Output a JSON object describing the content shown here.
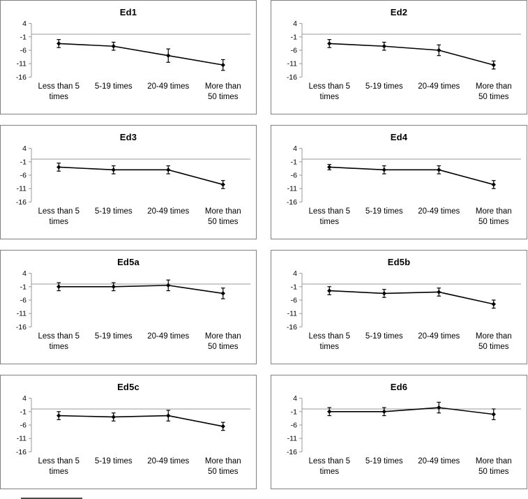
{
  "y_axis": {
    "ticks": [
      4,
      -1,
      -6,
      -11,
      -16
    ],
    "max": 4,
    "min": -16
  },
  "shared_categories": [
    "Less than 5 times",
    "5-19 times",
    "20-49 times",
    "More than 50 times"
  ],
  "chart_data": [
    {
      "type": "line",
      "title": "Ed1",
      "categories": [
        "Less than 5 times",
        "5-19 times",
        "20-49 times",
        "More than 50 times"
      ],
      "values": [
        -3.5,
        -4.5,
        -8,
        -11.5
      ],
      "errors": [
        1.5,
        1.5,
        2.5,
        2
      ],
      "ylim": [
        -16,
        4
      ],
      "yticks": [
        4,
        -1,
        -6,
        -11,
        -16
      ]
    },
    {
      "type": "line",
      "title": "Ed2",
      "categories": [
        "Less than 5 times",
        "5-19 times",
        "20-49 times",
        "More than 50 times"
      ],
      "values": [
        -3.5,
        -4.5,
        -6,
        -11.5
      ],
      "errors": [
        1.5,
        1.5,
        2,
        1.5
      ],
      "ylim": [
        -16,
        4
      ],
      "yticks": [
        4,
        -1,
        -6,
        -11,
        -16
      ]
    },
    {
      "type": "line",
      "title": "Ed3",
      "categories": [
        "Less than 5 times",
        "5-19 times",
        "20-49 times",
        "More than 50 times"
      ],
      "values": [
        -3,
        -4,
        -4,
        -9.5
      ],
      "errors": [
        1.5,
        1.5,
        1.5,
        1.5
      ],
      "ylim": [
        -16,
        4
      ],
      "yticks": [
        4,
        -1,
        -6,
        -11,
        -16
      ]
    },
    {
      "type": "line",
      "title": "Ed4",
      "categories": [
        "Less than 5 times",
        "5-19 times",
        "20-49 times",
        "More than 50 times"
      ],
      "values": [
        -3,
        -4,
        -4,
        -9.5
      ],
      "errors": [
        1,
        1.5,
        1.5,
        1.5
      ],
      "ylim": [
        -16,
        4
      ],
      "yticks": [
        4,
        -1,
        -6,
        -11,
        -16
      ]
    },
    {
      "type": "line",
      "title": "Ed5a",
      "categories": [
        "Less than 5 times",
        "5-19 times",
        "20-49 times",
        "More than 50 times"
      ],
      "values": [
        -1,
        -1,
        -0.5,
        -3.5
      ],
      "errors": [
        1.5,
        1.5,
        2,
        2
      ],
      "ylim": [
        -16,
        4
      ],
      "yticks": [
        4,
        -1,
        -6,
        -11,
        -16
      ]
    },
    {
      "type": "line",
      "title": "Ed5b",
      "categories": [
        "Less than 5 times",
        "5-19 times",
        "20-49 times",
        "More than 50 times"
      ],
      "values": [
        -2.5,
        -3.5,
        -3,
        -7.5
      ],
      "errors": [
        1.5,
        1.5,
        1.5,
        1.5
      ],
      "ylim": [
        -16,
        4
      ],
      "yticks": [
        4,
        -1,
        -6,
        -11,
        -16
      ]
    },
    {
      "type": "line",
      "title": "Ed5c",
      "categories": [
        "Less than 5 times",
        "5-19 times",
        "20-49 times",
        "More than 50 times"
      ],
      "values": [
        -2.5,
        -3,
        -2.5,
        -6.5
      ],
      "errors": [
        1.5,
        1.5,
        2,
        1.5
      ],
      "ylim": [
        -16,
        4
      ],
      "yticks": [
        4,
        -1,
        -6,
        -11,
        -16
      ]
    },
    {
      "type": "line",
      "title": "Ed6",
      "categories": [
        "Less than 5 times",
        "5-19 times",
        "20-49 times",
        "More than 50 times"
      ],
      "values": [
        -1,
        -1,
        0.5,
        -2
      ],
      "errors": [
        1.5,
        1.5,
        2,
        2
      ],
      "ylim": [
        -16,
        4
      ],
      "yticks": [
        4,
        -1,
        -6,
        -11,
        -16
      ]
    }
  ],
  "colors": {
    "line": "#000000",
    "axis": "#9a9a9a",
    "border": "#808080",
    "text": "#000000"
  }
}
